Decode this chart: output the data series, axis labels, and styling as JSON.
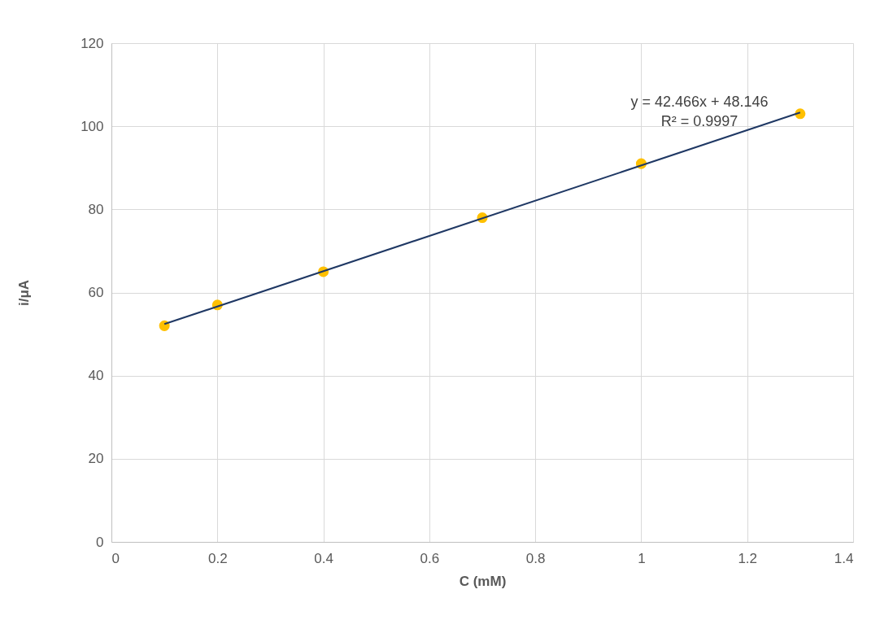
{
  "chart_data": {
    "type": "scatter",
    "xlabel": "C (mM)",
    "ylabel": "i/μA",
    "x": [
      0.1,
      0.2,
      0.4,
      0.7,
      1.0,
      1.3
    ],
    "series": [
      {
        "color": "#ffc000",
        "marker": "circle",
        "values": [
          52,
          57,
          65,
          78,
          91,
          103
        ]
      },
      {
        "type": "line",
        "color": "#1f3864",
        "marker": "none",
        "line_style": "solid",
        "x": [
          0.1,
          1.3
        ],
        "values": [
          52.4,
          103.3
        ]
      }
    ],
    "xlim": [
      0,
      1.4
    ],
    "xticks": [
      0,
      0.2,
      0.4,
      0.6,
      0.8,
      1,
      1.2,
      1.4
    ],
    "ylim": [
      0,
      120
    ],
    "yticks": [
      0,
      20,
      40,
      60,
      80,
      100,
      120
    ],
    "grid": true,
    "annotations": [
      "y = 42.466x + 48.146",
      "R² = 0.9997"
    ]
  }
}
